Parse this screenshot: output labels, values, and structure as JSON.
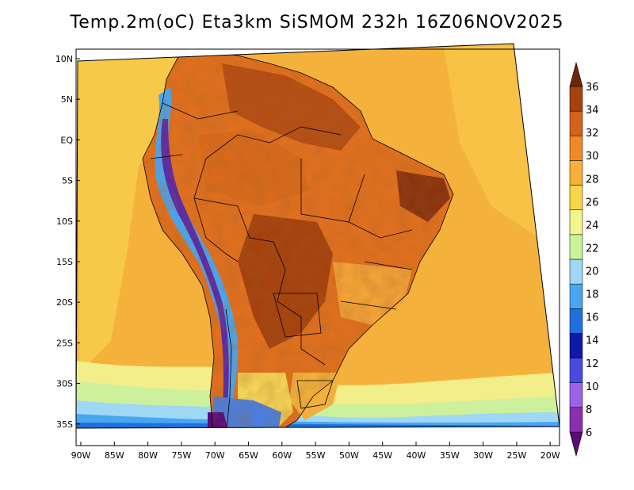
{
  "title": "Temp.2m(oC) Eta3km SiSMOM 232h 16Z06NOV2025",
  "map": {
    "lat_ticks": [
      "10N",
      "5N",
      "EQ",
      "5S",
      "10S",
      "15S",
      "20S",
      "25S",
      "30S",
      "35S"
    ],
    "lon_ticks": [
      "90W",
      "85W",
      "80W",
      "75W",
      "70W",
      "65W",
      "60W",
      "55W",
      "50W",
      "45W",
      "40W",
      "35W",
      "30W",
      "25W",
      "20W"
    ]
  },
  "colorbar": {
    "labels": [
      "6",
      "8",
      "10",
      "12",
      "14",
      "16",
      "18",
      "20",
      "22",
      "24",
      "26",
      "28",
      "30",
      "32",
      "34",
      "36"
    ],
    "colors": [
      "#5b0a78",
      "#8a2fb0",
      "#9b63e6",
      "#4a4ae0",
      "#0f1aa8",
      "#1f6fdc",
      "#4aa6f0",
      "#9ed8f4",
      "#cbf29a",
      "#f4f48c",
      "#f7d64a",
      "#f7b03a",
      "#f08a26",
      "#d4621a",
      "#a5420f",
      "#6e2608"
    ]
  }
}
